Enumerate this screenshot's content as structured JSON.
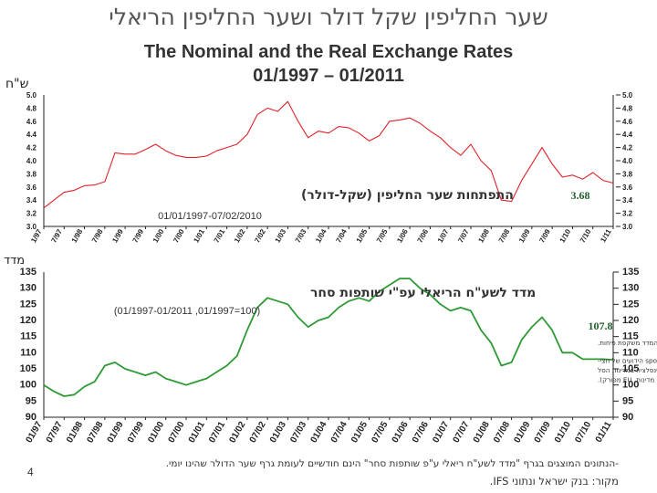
{
  "title_hebrew": "שער החליפין שקל דולר ושער החליפין הריאלי",
  "title_english": "The Nominal and the Real Exchange Rates",
  "subtitle": "01/1997 – 01/2011",
  "page_number": "4",
  "footnote": "-הנתונים המוצגים בגרף \"מדד לשע\"ח ריאלי ע\"פ שותפות סחר\" הינם חודשיים לעומת גרף שער הדולר שהינו יומי.",
  "source": "מקור: בנק ישראל ונתוני IFS.",
  "colors": {
    "nominal_line": "#e0222a",
    "real_line": "#2e9a35",
    "axis": "#222222"
  },
  "chart_data": [
    {
      "type": "line",
      "ylabel": "ש\"ח",
      "ylim": [
        3.0,
        5.0
      ],
      "yticks": [
        "3.0",
        "3.2",
        "3.4",
        "3.6",
        "3.8",
        "4.0",
        "4.2",
        "4.4",
        "4.6",
        "4.8",
        "5.0"
      ],
      "xticks": [
        "1/97",
        "7/97",
        "1/98",
        "7/98",
        "1/99",
        "7/99",
        "1/00",
        "7/00",
        "1/01",
        "7/01",
        "1/02",
        "7/02",
        "1/03",
        "7/03",
        "1/04",
        "7/04",
        "1/05",
        "7/05",
        "1/06",
        "7/06",
        "1/07",
        "7/07",
        "1/08",
        "7/08",
        "1/09",
        "7/09",
        "1/10",
        "7/10",
        "1/11"
      ],
      "annotation_title": "התפתחות שער החליפין (שקל-דולר)",
      "annotation_period": "01/01/1997-07/02/2010",
      "last_value_label": "3.68",
      "series": [
        {
          "x": [
            "1997-01",
            "1997-04",
            "1997-07",
            "1997-10",
            "1998-01",
            "1998-04",
            "1998-07",
            "1998-10",
            "1999-01",
            "1999-04",
            "1999-07",
            "1999-10",
            "2000-01",
            "2000-04",
            "2000-07",
            "2000-10",
            "2001-01",
            "2001-04",
            "2001-07",
            "2001-10",
            "2002-01",
            "2002-04",
            "2002-07",
            "2002-10",
            "2003-01",
            "2003-04",
            "2003-07",
            "2003-10",
            "2004-01",
            "2004-04",
            "2004-07",
            "2004-10",
            "2005-01",
            "2005-04",
            "2005-07",
            "2005-10",
            "2006-01",
            "2006-04",
            "2006-07",
            "2006-10",
            "2007-01",
            "2007-04",
            "2007-07",
            "2007-10",
            "2008-01",
            "2008-04",
            "2008-07",
            "2008-10",
            "2009-01",
            "2009-04",
            "2009-07",
            "2009-10",
            "2010-01",
            "2010-04",
            "2010-07",
            "2010-10",
            "2011-01"
          ],
          "values": [
            3.28,
            3.4,
            3.52,
            3.55,
            3.62,
            3.63,
            3.68,
            4.12,
            4.1,
            4.1,
            4.17,
            4.25,
            4.15,
            4.08,
            4.05,
            4.05,
            4.07,
            4.15,
            4.2,
            4.25,
            4.4,
            4.7,
            4.8,
            4.75,
            4.9,
            4.6,
            4.35,
            4.45,
            4.42,
            4.52,
            4.5,
            4.42,
            4.3,
            4.38,
            4.6,
            4.62,
            4.65,
            4.57,
            4.45,
            4.35,
            4.2,
            4.08,
            4.25,
            4.0,
            3.85,
            3.4,
            3.38,
            3.7,
            3.95,
            4.2,
            3.95,
            3.75,
            3.78,
            3.72,
            3.82,
            3.7,
            3.66
          ]
        }
      ]
    },
    {
      "type": "line",
      "ylabel": "מדד",
      "ylim": [
        90,
        135
      ],
      "yticks": [
        "90",
        "95",
        "100",
        "105",
        "110",
        "115",
        "120",
        "125",
        "130",
        "135"
      ],
      "xticks": [
        "01/97",
        "07/97",
        "01/98",
        "07/98",
        "01/99",
        "07/99",
        "01/00",
        "07/00",
        "01/01",
        "07/01",
        "01/02",
        "07/02",
        "01/03",
        "07/03",
        "01/04",
        "07/04",
        "01/05",
        "07/05",
        "01/06",
        "07/06",
        "01/07",
        "07/07",
        "01/08",
        "07/08",
        "01/09",
        "07/09",
        "01/10",
        "07/10",
        "01/11"
      ],
      "annotation_title": "מדד לשע\"ח הריאלי עפ\"י שותפות סחר",
      "annotation_period": "(01/1997-01/2011 ,01/1997=100)",
      "last_value_label": "107.8",
      "notes": [
        "- עליית המדד משקפת פיחות.",
        "- הנתון עבור החודש האחרון הינו חישוב מבוסס על שערי החליפין ה-spot הידועים של חצי-",
        "חודש, התחזית ל-CPI של שלם מהמדד החודשי ואקסטרפולציה של אינפלציה במדינות הסל",
        "(17 מדינות, EU מפורק)."
      ],
      "series": [
        {
          "x": [
            "1997-01",
            "1997-04",
            "1997-07",
            "1997-10",
            "1998-01",
            "1998-04",
            "1998-07",
            "1998-10",
            "1999-01",
            "1999-04",
            "1999-07",
            "1999-10",
            "2000-01",
            "2000-04",
            "2000-07",
            "2000-10",
            "2001-01",
            "2001-04",
            "2001-07",
            "2001-10",
            "2002-01",
            "2002-04",
            "2002-07",
            "2002-10",
            "2003-01",
            "2003-04",
            "2003-07",
            "2003-10",
            "2004-01",
            "2004-04",
            "2004-07",
            "2004-10",
            "2005-01",
            "2005-04",
            "2005-07",
            "2005-10",
            "2006-01",
            "2006-04",
            "2006-07",
            "2006-10",
            "2007-01",
            "2007-04",
            "2007-07",
            "2007-10",
            "2008-01",
            "2008-04",
            "2008-07",
            "2008-10",
            "2009-01",
            "2009-04",
            "2009-07",
            "2009-10",
            "2010-01",
            "2010-04",
            "2010-07",
            "2010-10",
            "2011-01"
          ],
          "values": [
            100,
            98,
            96.5,
            97,
            99.5,
            101,
            106,
            107,
            105,
            104,
            103,
            104,
            102,
            101,
            100,
            101,
            102,
            104,
            106,
            109,
            117,
            124,
            127,
            126,
            125,
            121,
            118,
            120,
            121,
            124,
            126,
            127,
            126,
            129,
            131,
            133,
            133,
            130,
            128,
            125,
            123,
            124,
            123,
            117,
            113,
            106,
            107,
            114,
            118,
            121,
            117,
            110,
            110,
            108,
            108,
            108,
            107.8
          ]
        }
      ]
    }
  ]
}
